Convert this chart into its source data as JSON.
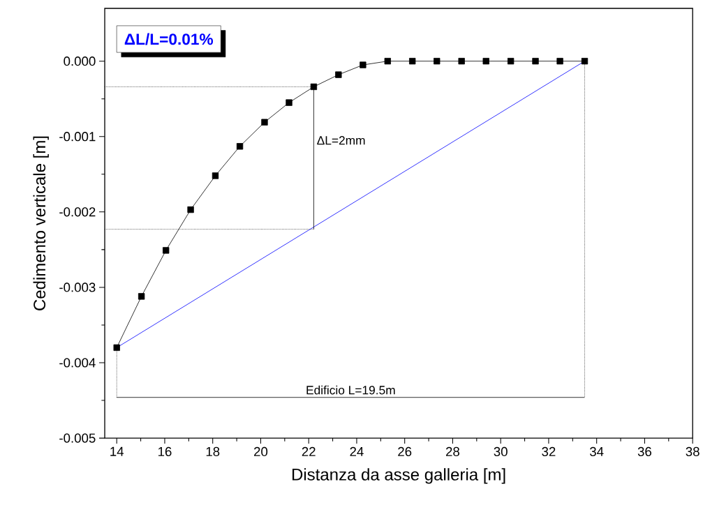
{
  "chart_data": {
    "type": "line",
    "xlabel": "Distanza da asse galleria [m]",
    "ylabel": "Cedimento verticale [m]",
    "xlim": [
      13.5,
      38
    ],
    "ylim": [
      -0.005,
      0.0007
    ],
    "xticks": [
      14,
      16,
      18,
      20,
      22,
      24,
      26,
      28,
      30,
      32,
      34,
      36,
      38
    ],
    "yticks": [
      {
        "value": -0.005,
        "label": "-0.005"
      },
      {
        "value": -0.004,
        "label": "-0.004"
      },
      {
        "value": -0.003,
        "label": "-0.003"
      },
      {
        "value": -0.002,
        "label": "-0.002"
      },
      {
        "value": -0.001,
        "label": "-0.001"
      },
      {
        "value": 0,
        "label": "0.000"
      }
    ],
    "grid": false,
    "series": [
      {
        "color": "#000000",
        "marker": "square",
        "line_style": "solid",
        "x": [
          14,
          15.03,
          16.05,
          17.08,
          18.11,
          19.13,
          20.16,
          21.18,
          22.21,
          23.24,
          24.26,
          25.29,
          26.32,
          27.34,
          28.37,
          29.39,
          30.42,
          31.45,
          32.47,
          33.5
        ],
        "values": [
          -0.0038,
          -0.00312,
          -0.00251,
          -0.00197,
          -0.00152,
          -0.00113,
          -0.00081,
          -0.00055,
          -0.00034,
          -0.00018,
          -5e-05,
          0,
          0,
          0,
          0,
          0,
          0,
          0,
          0,
          0
        ]
      },
      {
        "color": "#0000ff",
        "marker": "none",
        "line_style": "solid",
        "x": [
          14,
          33.5
        ],
        "values": [
          -0.0038,
          0
        ]
      },
      {
        "color": "#000000",
        "marker": "none",
        "line_style": "dotted",
        "x": [
          13.5,
          22.21
        ],
        "values": [
          -0.00034,
          -0.00034
        ]
      },
      {
        "color": "#000000",
        "marker": "none",
        "line_style": "dotted",
        "x": [
          13.5,
          22.21
        ],
        "values": [
          -0.00223,
          -0.00223
        ]
      },
      {
        "color": "#000000",
        "marker": "none",
        "line_style": "dotted",
        "x": [
          14,
          14
        ],
        "values": [
          -0.0038,
          -0.00446
        ]
      },
      {
        "color": "#000000",
        "marker": "none",
        "line_style": "dotted",
        "x": [
          33.5,
          33.5
        ],
        "values": [
          0,
          -0.00446
        ]
      },
      {
        "color": "#000000",
        "marker": "none",
        "line_style": "solid",
        "x": [
          22.21,
          22.21
        ],
        "values": [
          -0.00034,
          -0.00223
        ]
      },
      {
        "color": "#000000",
        "marker": "none",
        "line_style": "solid",
        "x": [
          14,
          33.5
        ],
        "values": [
          -0.00446,
          -0.00446
        ]
      }
    ],
    "annotations": [
      "ΔL/L=0.01%",
      {
        "text": "ΔL=2mm",
        "x": 22.21,
        "y": -0.00105
      },
      {
        "text": "Edificio L=19.5m",
        "x": 23.75,
        "y": -0.00446
      }
    ]
  }
}
